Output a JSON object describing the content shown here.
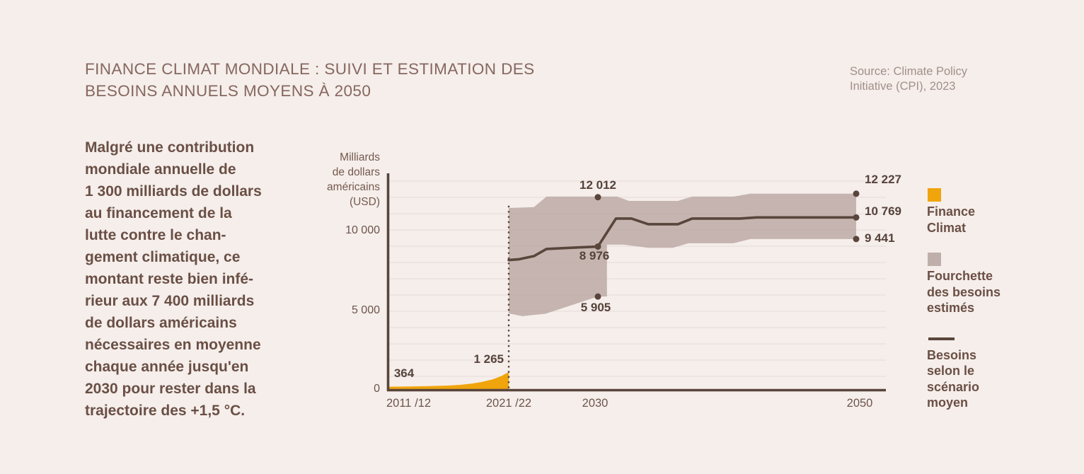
{
  "page": {
    "background": "#F5EEEB"
  },
  "header": {
    "title": "FINANCE CLIMAT MONDIALE : SUIVI ET ESTIMATION DES\nBESOINS ANNUELS MOYENS À 2050",
    "source": "Source: Climate Policy\nInitiative (CPI), 2023"
  },
  "intro": {
    "text": "Malgré une contribution\nmondiale annuelle de\n1 300 milliards de dollars\nau financement de la\nlutte contre le chan-\ngement climatique, ce\nmontant reste bien infé-\nrieur aux 7 400 milliards\nde dollars américains\nnécessaires en moyenne\nchaque année jusqu'en\n2030 pour rester dans la\ntrajectoire des +1,5 °C."
  },
  "legend": {
    "items": [
      {
        "label": "Finance\nClimat",
        "swatch": "square",
        "color": "#F0A50C"
      },
      {
        "label": "Fourchette\ndes besoins\nestimés",
        "swatch": "square",
        "color": "#BFAFAB"
      },
      {
        "label": "Besoins\nselon le\nscénario\nmoyen",
        "swatch": "line",
        "color": "#5A453C"
      }
    ]
  },
  "chart_data": {
    "type": "area",
    "title": "Finance climat mondiale : suivi et estimation des besoins annuels moyens à 2050",
    "unit": "Milliards de dollars américains (USD)",
    "y_axis_title": "Milliards\nde dollars\naméricains\n(USD)",
    "ylim": [
      0,
      13500
    ],
    "grid": {
      "show": true,
      "step": 1000
    },
    "x_ticks": [
      {
        "label": "2011 /12",
        "year": 2011.5
      },
      {
        "label": "2021 /22",
        "year": 2021.5
      },
      {
        "label": "2030",
        "year": 2030
      },
      {
        "label": "2050",
        "year": 2050
      }
    ],
    "y_ticks": [
      {
        "label": "10 000",
        "value": 10000
      },
      {
        "label": "5 000",
        "value": 5000
      },
      {
        "label": "0",
        "value": 0
      }
    ],
    "divider": {
      "year": 2021.5,
      "style": "dotted"
    },
    "series": [
      {
        "name": "Finance Climat",
        "type": "area",
        "color": "#F0A50C",
        "points": [
          [
            2011.5,
            364
          ],
          [
            2013,
            375
          ],
          [
            2015,
            400
          ],
          [
            2016.5,
            435
          ],
          [
            2017.5,
            480
          ],
          [
            2018.5,
            560
          ],
          [
            2019.3,
            660
          ],
          [
            2020.2,
            820
          ],
          [
            2020.9,
            1020
          ],
          [
            2021.5,
            1265
          ]
        ]
      },
      {
        "name": "Fourchette des besoins estimés",
        "type": "band",
        "color": "#BCA9A4",
        "top": [
          [
            2021.5,
            11350
          ],
          [
            2023.9,
            11400
          ],
          [
            2025.1,
            12050
          ],
          [
            2031.5,
            12050
          ],
          [
            2032.4,
            11780
          ],
          [
            2036.2,
            11780
          ],
          [
            2037.3,
            12050
          ],
          [
            2040.5,
            12050
          ],
          [
            2041.8,
            12227
          ],
          [
            2050,
            12227
          ]
        ],
        "bottom": [
          [
            2021.5,
            4870
          ],
          [
            2022.8,
            4700
          ],
          [
            2025,
            4850
          ],
          [
            2030,
            5905
          ],
          [
            2030.7,
            5905
          ],
          [
            2030.7,
            9100
          ],
          [
            2032,
            9100
          ],
          [
            2033.9,
            8900
          ],
          [
            2035.8,
            8900
          ],
          [
            2037,
            9180
          ],
          [
            2040.5,
            9180
          ],
          [
            2041.8,
            9441
          ],
          [
            2050,
            9441
          ]
        ]
      },
      {
        "name": "Besoins selon le scénario moyen",
        "type": "line",
        "color": "#5A453C",
        "points": [
          [
            2021.5,
            8150
          ],
          [
            2022.5,
            8200
          ],
          [
            2023.9,
            8390
          ],
          [
            2025.1,
            8830
          ],
          [
            2028,
            8920
          ],
          [
            2030,
            8976
          ],
          [
            2031.4,
            10700
          ],
          [
            2032.6,
            10700
          ],
          [
            2033.9,
            10350
          ],
          [
            2036.2,
            10350
          ],
          [
            2037.3,
            10700
          ],
          [
            2041,
            10700
          ],
          [
            2042.3,
            10769
          ],
          [
            2050,
            10769
          ]
        ]
      }
    ],
    "markers": [
      [
        2030,
        12012
      ],
      [
        2030,
        8976
      ],
      [
        2030,
        5905
      ],
      [
        2050,
        12227
      ],
      [
        2050,
        10769
      ],
      [
        2050,
        9441
      ]
    ],
    "point_labels": [
      {
        "text": "364",
        "series": "Finance Climat",
        "year": 2011.5
      },
      {
        "text": "1 265",
        "series": "Finance Climat",
        "year": 2021.5
      },
      {
        "text": "12 012",
        "series": "Fourchette des besoins estimés (haut)",
        "year": 2030
      },
      {
        "text": "8 976",
        "series": "Besoins selon le scénario moyen",
        "year": 2030
      },
      {
        "text": "5 905",
        "series": "Fourchette des besoins estimés (bas)",
        "year": 2030
      },
      {
        "text": "12 227",
        "series": "Fourchette des besoins estimés (haut)",
        "year": 2050
      },
      {
        "text": "10 769",
        "series": "Besoins selon le scénario moyen",
        "year": 2050
      },
      {
        "text": "9 441",
        "series": "Fourchette des besoins estimés (bas)",
        "year": 2050
      }
    ]
  }
}
